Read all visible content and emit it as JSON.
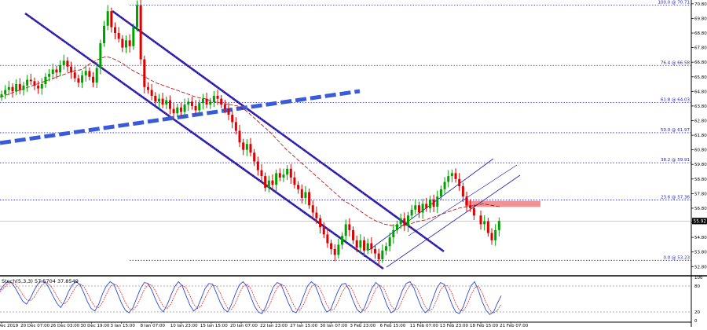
{
  "chart_data": [
    {
      "type": "candlestick",
      "title": "",
      "ylim": [
        52.6,
        70.9
      ],
      "y_ticks": [
        "70.80",
        "69.80",
        "68.80",
        "67.80",
        "66.80",
        "65.80",
        "64.80",
        "63.80",
        "62.80",
        "61.80",
        "60.80",
        "59.80",
        "58.80",
        "57.80",
        "56.80",
        "55.80",
        "54.80",
        "53.80",
        "52.80"
      ],
      "x_ticks": [
        "19 Dec 2019",
        "20 Dec 07:00",
        "26 Dec 03:00",
        "30 Dec 19:00",
        "3 Jan 15:00",
        "8 Jan 07:00",
        "10 Jan 23:00",
        "15 Jan 15:00",
        "20 Jan 07:00",
        "22 Jan 23:00",
        "27 Jan 15:00",
        "30 Jan 07:00",
        "3 Feb 23:00",
        "6 Feb 15:00",
        "11 Feb 07:00",
        "13 Feb 23:00",
        "18 Feb 15:00",
        "21 Feb 07:00"
      ],
      "current_price": "55.92",
      "fibonacci": [
        {
          "label": "100.0 @ 70.71",
          "price": 70.71
        },
        {
          "label": "76.4 @ 66.58",
          "price": 66.58
        },
        {
          "label": "61.8 @ 64.03",
          "price": 64.03
        },
        {
          "label": "50.0 @ 61.97",
          "price": 61.97
        },
        {
          "label": "38.2 @ 59.91",
          "price": 59.91
        },
        {
          "label": "23.6 @ 57.36",
          "price": 57.36
        },
        {
          "label": "0.0 @ 53.23",
          "price": 53.23
        }
      ],
      "series": [
        {
          "values": [
            64.6,
            64.9,
            65.1,
            64.8,
            65.3,
            64.9,
            65.2,
            65.6,
            65.5,
            65.2,
            65.0,
            65.3,
            65.8,
            66.0,
            66.3,
            66.1,
            66.6,
            66.9,
            66.5,
            66.1,
            65.7,
            65.4,
            65.9,
            66.2,
            65.8,
            65.4,
            66.4,
            68.1,
            69.3,
            70.3,
            69.2,
            68.8,
            68.4,
            67.8,
            68.3,
            67.9,
            69.2,
            70.7,
            67.0,
            65.1,
            64.9,
            64.5,
            64.1,
            64.3,
            63.9,
            64.2,
            63.6,
            63.3,
            63.7,
            63.4,
            63.9,
            64.1,
            63.8,
            63.5,
            64.0,
            64.3,
            63.9,
            64.1,
            64.5,
            64.3,
            63.9,
            63.6,
            63.2,
            62.7,
            62.1,
            61.3,
            60.8,
            61.2,
            60.6,
            60.0,
            59.4,
            59.0,
            58.2,
            58.7,
            58.4,
            59.2,
            58.9,
            59.1,
            59.5,
            58.9,
            58.4,
            58.1,
            57.5,
            57.9,
            57.0,
            56.5,
            56.1,
            55.5,
            55.0,
            54.4,
            54.0,
            53.6,
            54.3,
            54.9,
            55.7,
            55.3,
            54.6,
            54.1,
            54.6,
            53.9,
            54.4,
            54.0,
            53.7,
            53.3,
            53.9,
            54.2,
            54.8,
            55.3,
            55.7,
            56.1,
            55.6,
            56.3,
            56.7,
            57.0,
            56.5,
            57.1,
            56.8,
            57.4,
            56.9,
            57.6,
            58.1,
            58.6,
            59.0,
            59.2,
            58.8,
            58.3,
            57.6,
            57.0,
            56.8,
            56.3,
            55.7,
            55.9,
            55.1,
            54.6,
            55.3,
            55.92
          ]
        }
      ],
      "moving_average": [
        64.4,
        64.6,
        64.8,
        65.0,
        65.2,
        65.4,
        65.6,
        65.8,
        66.0,
        66.2,
        66.3,
        66.7,
        67.0,
        67.2,
        67.0,
        66.7,
        66.3,
        66.0,
        65.7,
        65.4,
        65.2,
        65.0,
        64.8,
        64.6,
        64.4,
        64.3,
        64.1,
        64.0,
        63.9,
        63.8,
        63.5,
        63.0,
        62.5,
        62.0,
        61.4,
        60.8,
        60.3,
        59.8,
        59.3,
        58.8,
        58.3,
        57.8,
        57.3,
        57.0,
        56.6,
        56.2,
        55.9,
        55.7,
        55.6,
        55.6,
        55.7,
        55.9,
        56.0,
        56.2,
        56.4,
        56.6,
        56.8,
        56.9,
        57.0,
        57.1,
        57.0,
        56.9
      ],
      "channel_labels": [],
      "oscillator": {
        "label": "Stoch(5,3,3) 57.5704 37.8549",
        "ylim": [
          0,
          100
        ],
        "ticks": [
          "100",
          "80",
          "20",
          "0"
        ],
        "k": [
          70,
          82,
          90,
          88,
          76,
          60,
          45,
          38,
          52,
          70,
          85,
          92,
          88,
          74,
          56,
          40,
          30,
          45,
          66,
          82,
          90,
          84,
          66,
          44,
          28,
          22,
          38,
          62,
          80,
          90,
          84,
          62,
          40,
          24,
          18,
          30,
          52,
          74,
          88,
          86,
          70,
          48,
          30,
          20,
          36,
          58,
          78,
          90,
          80,
          58,
          36,
          22,
          30,
          52,
          74,
          86,
          84,
          64,
          42,
          26,
          20,
          38,
          62,
          82,
          90,
          80,
          56,
          34,
          20,
          16,
          32,
          56,
          78,
          88,
          84,
          62,
          40,
          22,
          18,
          34,
          58,
          80,
          90,
          82,
          60,
          36,
          20,
          24,
          46,
          68,
          84,
          86,
          70,
          46,
          26,
          18,
          30,
          54,
          76,
          88,
          80,
          58,
          34,
          18,
          24,
          46,
          70,
          86,
          90,
          76,
          52,
          30,
          18,
          26,
          50,
          74,
          88,
          84,
          62,
          38,
          20,
          16,
          32,
          58,
          80,
          90,
          70,
          44,
          24,
          14,
          20,
          40,
          57.57
        ],
        "d": [
          66,
          76,
          84,
          88,
          84,
          74,
          60,
          48,
          46,
          54,
          69,
          82,
          88,
          84,
          72,
          56,
          42,
          38,
          48,
          64,
          79,
          85,
          80,
          64,
          46,
          32,
          30,
          42,
          60,
          78,
          85,
          80,
          62,
          42,
          28,
          24,
          34,
          52,
          72,
          83,
          82,
          68,
          49,
          33,
          28,
          38,
          58,
          76,
          82,
          76,
          58,
          38,
          28,
          34,
          52,
          70,
          82,
          80,
          64,
          44,
          28,
          26,
          40,
          62,
          79,
          84,
          75,
          54,
          35,
          23,
          22,
          36,
          58,
          76,
          84,
          80,
          62,
          42,
          26,
          24,
          38,
          60,
          78,
          85,
          78,
          60,
          38,
          24,
          26,
          42,
          64,
          78,
          82,
          68,
          46,
          28,
          22,
          34,
          54,
          74,
          82,
          76,
          56,
          35,
          24,
          28,
          48,
          68,
          82,
          84,
          72,
          52,
          32,
          22,
          28,
          48,
          70,
          82,
          80,
          64,
          40,
          24,
          22,
          36,
          58,
          76,
          80,
          64,
          42,
          24,
          17,
          24,
          37.85
        ]
      }
    }
  ],
  "colors": {
    "up": "#00a000",
    "down": "#dd0000",
    "ma": "#b00000",
    "fib": "#2222cc",
    "trend_thick": "#3a5bd9",
    "channel": "#1a1ab0",
    "channel_dots": "#9030a0",
    "resistance_box": "#ef8585",
    "stoch_k": "#2b4bd8",
    "stoch_d": "#e03030"
  }
}
